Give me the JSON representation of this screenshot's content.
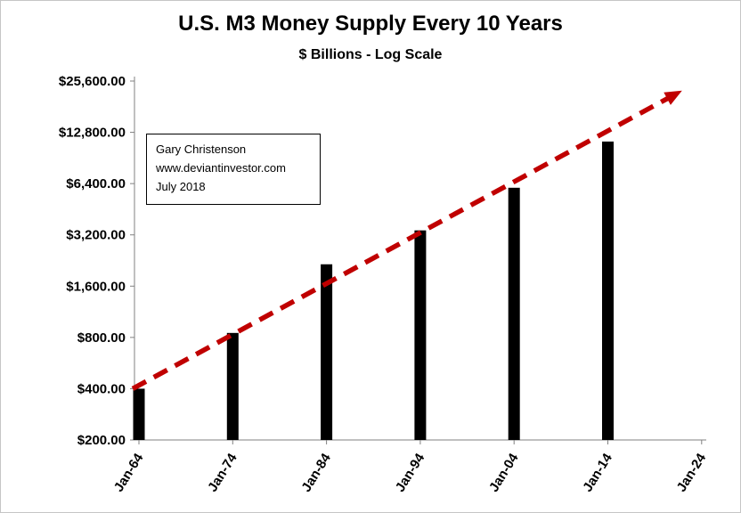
{
  "title": "U.S. M3 Money Supply Every 10 Years",
  "subtitle": "$ Billions - Log Scale",
  "annotation": {
    "line1": "Gary Christenson",
    "line2": "www.deviantinvestor.com",
    "line3": "July 2018"
  },
  "chart_data": {
    "type": "bar",
    "title": "U.S. M3 Money Supply Every 10 Years",
    "subtitle": "$ Billions - Log Scale",
    "scale": "log2",
    "categories": [
      "Jan-64",
      "Jan-74",
      "Jan-84",
      "Jan-94",
      "Jan-04",
      "Jan-14",
      "Jan-24"
    ],
    "values": [
      400,
      850,
      2150,
      3400,
      6050,
      11300,
      null
    ],
    "y_ticks": [
      200,
      400,
      800,
      1600,
      3200,
      6400,
      12800,
      25600
    ],
    "y_tick_labels": [
      "$200.00",
      "$400.00",
      "$800.00",
      "$1,600.00",
      "$3,200.00",
      "$6,400.00",
      "$12,800.00",
      "$25,600.00"
    ],
    "ylim": [
      200,
      25600
    ],
    "xlabel": "",
    "ylabel": "",
    "grid": false,
    "legend": "none",
    "bar_color": "#000000",
    "axis_color": "#808080",
    "trend": {
      "style": "dashed",
      "arrow": true,
      "color": "#c00000",
      "start": {
        "index": 0,
        "value": 400
      },
      "end": {
        "index": 6,
        "value": 22500
      }
    }
  }
}
